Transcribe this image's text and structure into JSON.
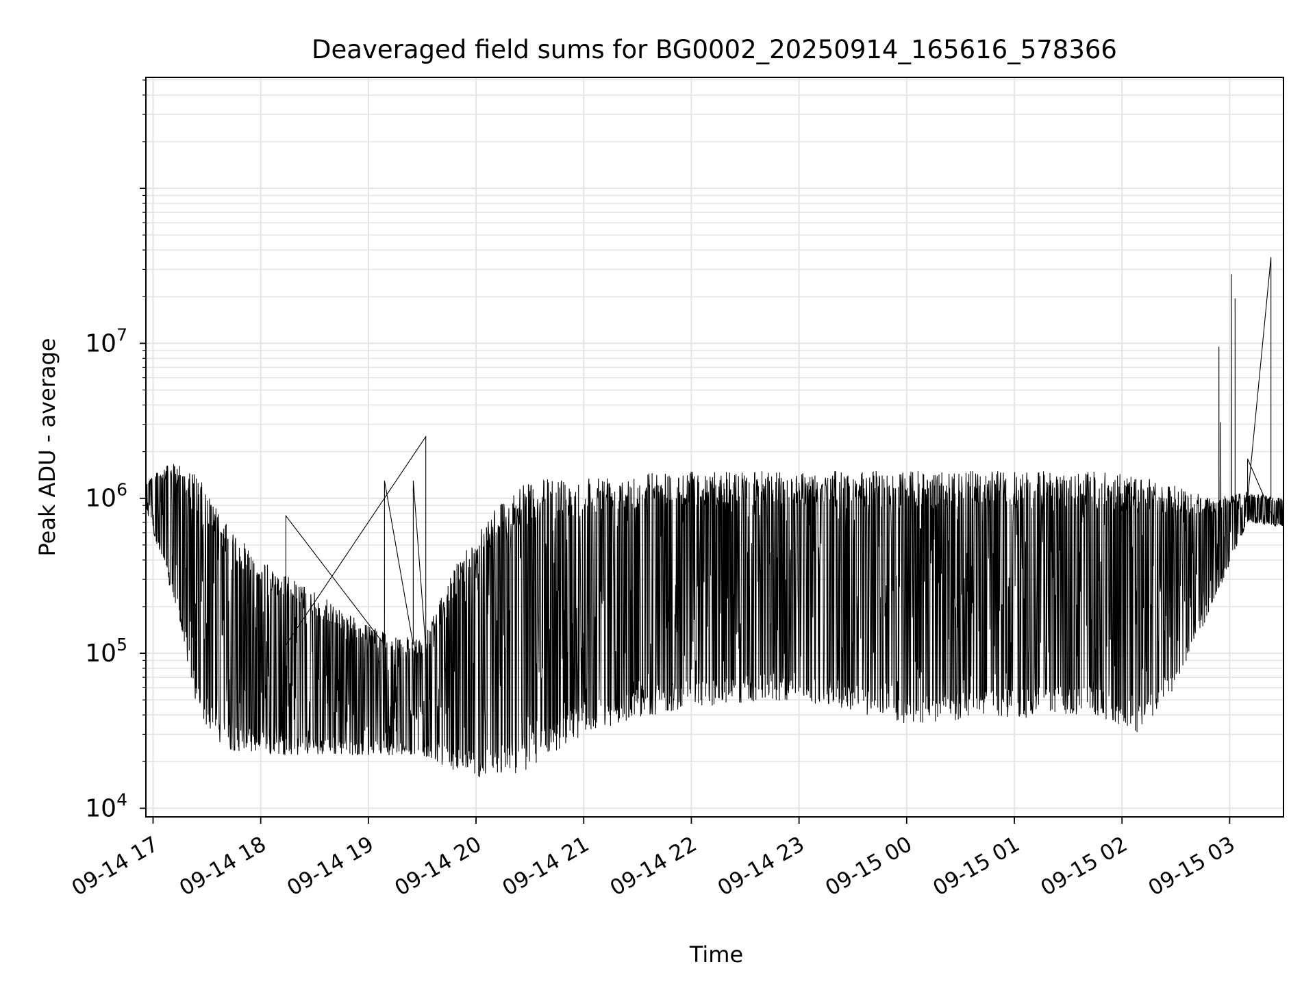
{
  "chart_data": {
    "type": "line",
    "title": "Deaveraged field sums for BG0002_20250914_165616_578366",
    "xlabel": "Time",
    "ylabel": "Peak ADU - average",
    "yscale": "log",
    "ylim": [
      8800,
      520000000
    ],
    "xlim": [
      "2025-09-14 16:56",
      "2025-09-15 03:30"
    ],
    "grid": true,
    "x_ticks": [
      {
        "t": "2025-09-14 17:00",
        "label": "09-14 17"
      },
      {
        "t": "2025-09-14 18:00",
        "label": "09-14 18"
      },
      {
        "t": "2025-09-14 19:00",
        "label": "09-14 19"
      },
      {
        "t": "2025-09-14 20:00",
        "label": "09-14 20"
      },
      {
        "t": "2025-09-14 21:00",
        "label": "09-14 21"
      },
      {
        "t": "2025-09-14 22:00",
        "label": "09-14 22"
      },
      {
        "t": "2025-09-14 23:00",
        "label": "09-14 23"
      },
      {
        "t": "2025-09-15 00:00",
        "label": "09-15 00"
      },
      {
        "t": "2025-09-15 01:00",
        "label": "09-15 01"
      },
      {
        "t": "2025-09-15 02:00",
        "label": "09-15 02"
      },
      {
        "t": "2025-09-15 03:00",
        "label": "09-15 03"
      }
    ],
    "y_ticks": [
      {
        "value": 10000,
        "base": "10",
        "exp": "4"
      },
      {
        "value": 100000,
        "base": "10",
        "exp": "5"
      },
      {
        "value": 1000000,
        "base": "10",
        "exp": "6"
      },
      {
        "value": 10000000,
        "base": "10",
        "exp": "7"
      }
    ],
    "series": [
      {
        "color": "#000000",
        "envelope": [
          {
            "t": "2025-09-14 16:56",
            "low": 850000,
            "high": 1300000
          },
          {
            "t": "2025-09-14 17:05",
            "low": 400000,
            "high": 1600000
          },
          {
            "t": "2025-09-14 17:15",
            "low": 150000,
            "high": 1700000
          },
          {
            "t": "2025-09-14 17:25",
            "low": 40000,
            "high": 1400000
          },
          {
            "t": "2025-09-14 17:40",
            "low": 24000,
            "high": 700000
          },
          {
            "t": "2025-09-14 18:00",
            "low": 22000,
            "high": 400000
          },
          {
            "t": "2025-09-14 18:30",
            "low": 22000,
            "high": 250000
          },
          {
            "t": "2025-09-14 19:00",
            "low": 22000,
            "high": 150000
          },
          {
            "t": "2025-09-14 19:30",
            "low": 22000,
            "high": 120000
          },
          {
            "t": "2025-09-14 19:50",
            "low": 17000,
            "high": 400000
          },
          {
            "t": "2025-09-14 20:10",
            "low": 15000,
            "high": 900000
          },
          {
            "t": "2025-09-14 20:30",
            "low": 18000,
            "high": 1300000
          },
          {
            "t": "2025-09-14 21:00",
            "low": 30000,
            "high": 1400000
          },
          {
            "t": "2025-09-14 21:30",
            "low": 38000,
            "high": 1500000
          },
          {
            "t": "2025-09-14 22:00",
            "low": 45000,
            "high": 1500000
          },
          {
            "t": "2025-09-14 23:00",
            "low": 50000,
            "high": 1500000
          },
          {
            "t": "2025-09-15 00:00",
            "low": 35000,
            "high": 1500000
          },
          {
            "t": "2025-09-15 01:00",
            "low": 38000,
            "high": 1500000
          },
          {
            "t": "2025-09-15 01:40",
            "low": 40000,
            "high": 1500000
          },
          {
            "t": "2025-09-15 02:10",
            "low": 30000,
            "high": 1400000
          },
          {
            "t": "2025-09-15 02:30",
            "low": 60000,
            "high": 1200000
          },
          {
            "t": "2025-09-15 02:50",
            "low": 200000,
            "high": 1000000
          },
          {
            "t": "2025-09-15 03:10",
            "low": 700000,
            "high": 1100000
          },
          {
            "t": "2025-09-15 03:30",
            "low": 650000,
            "high": 1000000
          }
        ],
        "spikes": [
          {
            "t": "2025-09-14 19:32",
            "value": 2500000
          },
          {
            "t": "2025-09-14 18:14",
            "value": 770000
          },
          {
            "t": "2025-09-14 19:09",
            "value": 1300000
          },
          {
            "t": "2025-09-14 19:25",
            "value": 1300000
          },
          {
            "t": "2025-09-15 02:54",
            "value": 9500000
          },
          {
            "t": "2025-09-15 02:55",
            "value": 3100000
          },
          {
            "t": "2025-09-15 03:01",
            "value": 28000000
          },
          {
            "t": "2025-09-15 03:03",
            "value": 19500000
          },
          {
            "t": "2025-09-15 03:23",
            "value": 36000000
          },
          {
            "t": "2025-09-15 03:10",
            "value": 1800000
          }
        ]
      }
    ]
  }
}
